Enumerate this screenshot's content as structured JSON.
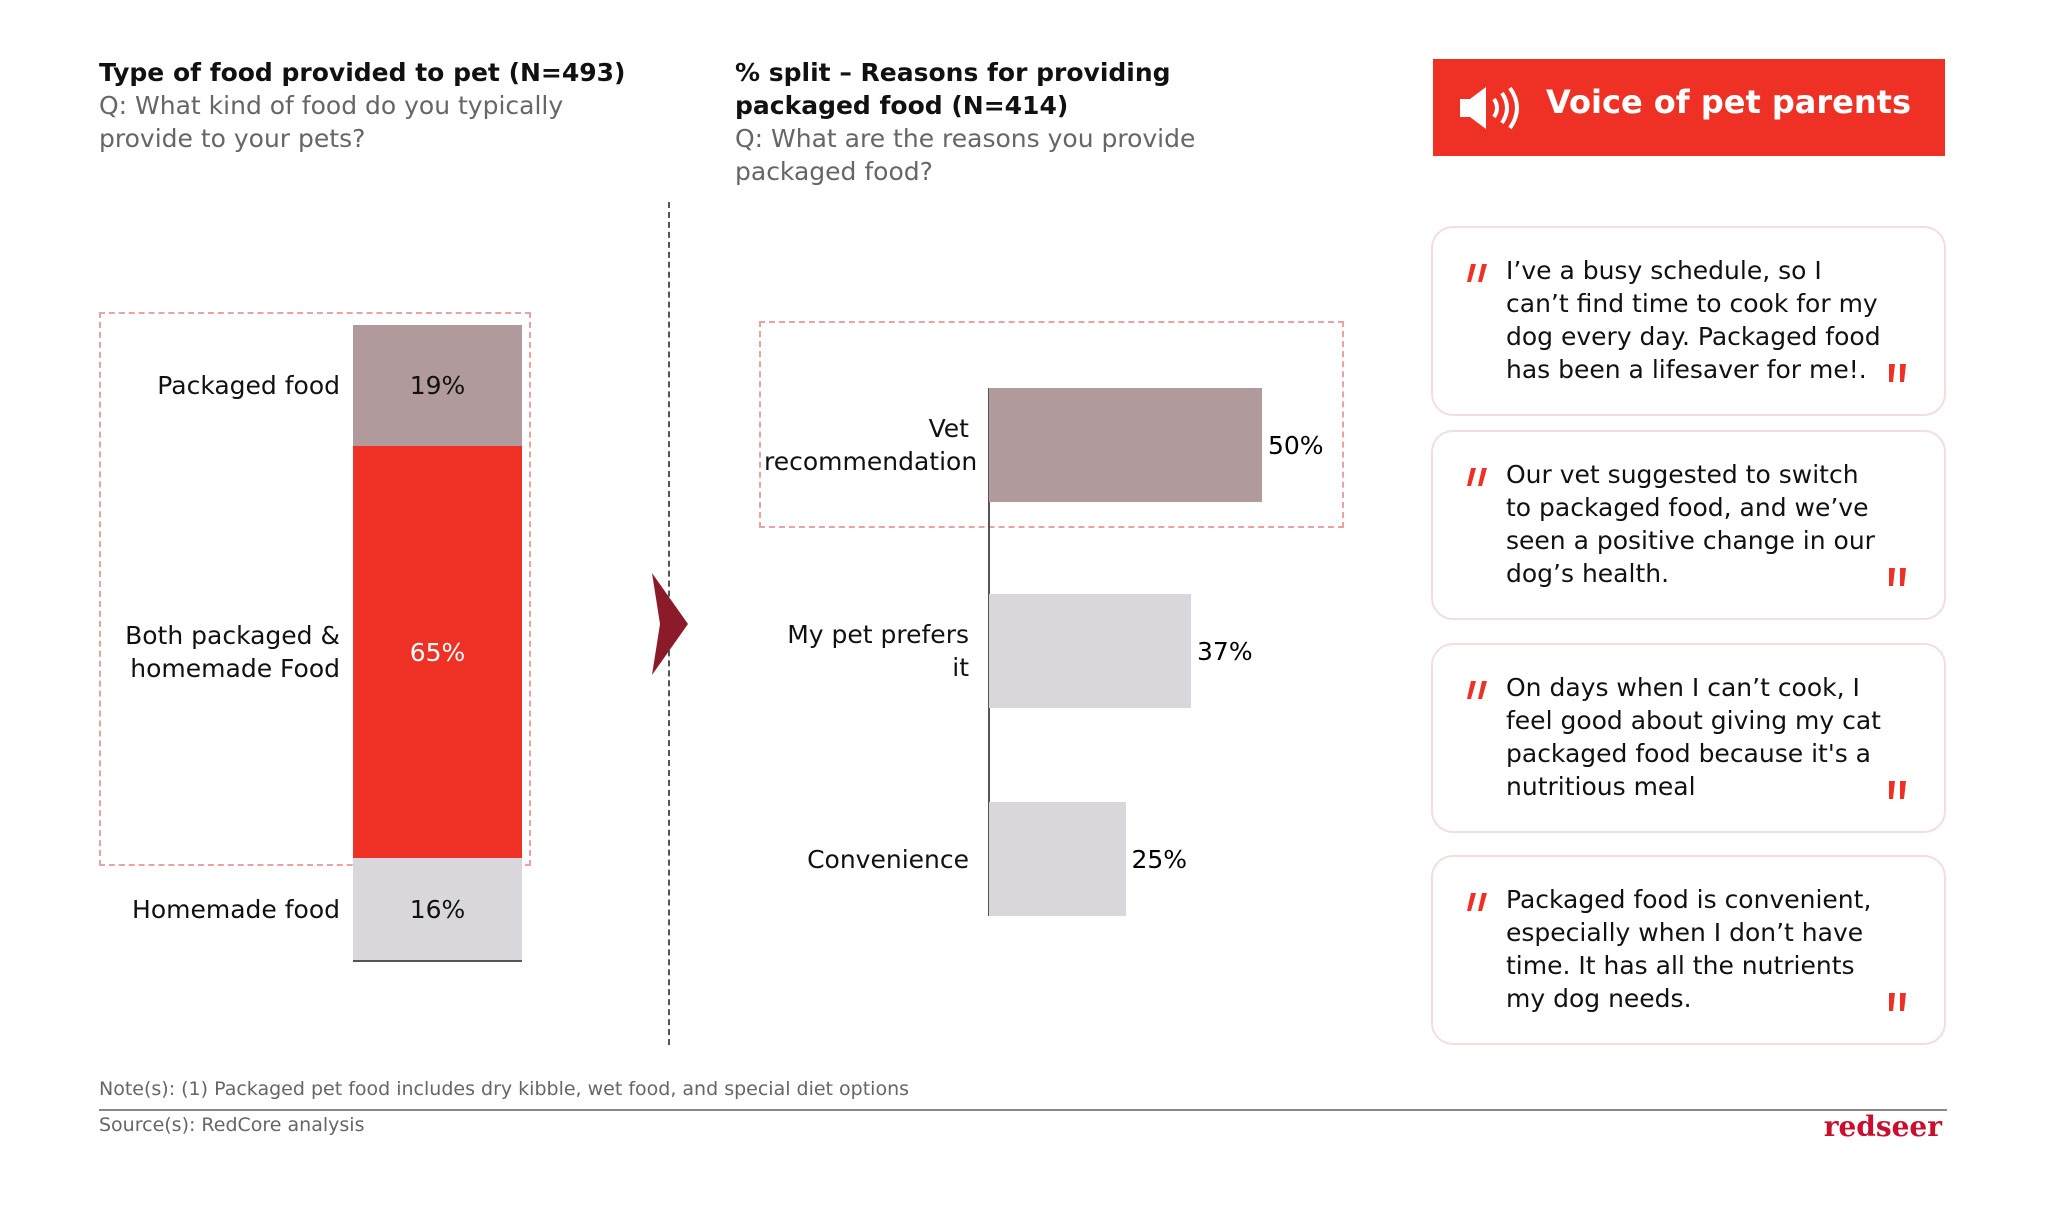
{
  "chart_data": [
    {
      "type": "stacked-column",
      "title": "Type of food provided to pet (N=493)",
      "subtitle": "Q: What kind of food do you typically provide to your pets?",
      "categories": [
        "Packaged food",
        "Both packaged & homemade Food",
        "Homemade food"
      ],
      "values": [
        19,
        65,
        16
      ],
      "value_labels": [
        "19%",
        "65%",
        "16%"
      ],
      "colors": [
        "#b09a9c",
        "#ee3124",
        "#d9d7db"
      ]
    },
    {
      "type": "hbar",
      "title": "% split – Reasons for providing packaged food (N=414)",
      "subtitle": "Q: What are the reasons you provide packaged food?",
      "categories": [
        "Vet recommendation",
        "My pet prefers it",
        "Convenience"
      ],
      "values": [
        50,
        37,
        25
      ],
      "value_labels": [
        "50%",
        "37%",
        "25%"
      ],
      "colors": [
        "#b09a9c",
        "#d9d7db",
        "#d9d7db"
      ]
    }
  ],
  "voice": {
    "title": "Voice of pet parents",
    "quotes": [
      "I’ve a busy schedule, so I can’t find time to cook for my dog every day. Packaged food has been a lifesaver for me!.",
      "Our vet suggested to switch to packaged food, and we’ve seen a positive change in our dog’s health.",
      "On days when I can’t cook, I feel good about giving my cat packaged food because it's a nutritious meal",
      "Packaged food is convenient, especially when I don’t have time. It has all the nutrients my dog needs."
    ]
  },
  "note": "Note(s): (1) Packaged pet food includes dry kibble, wet food, and special diet options",
  "source": "Source(s): RedCore analysis",
  "brand": "redseer"
}
